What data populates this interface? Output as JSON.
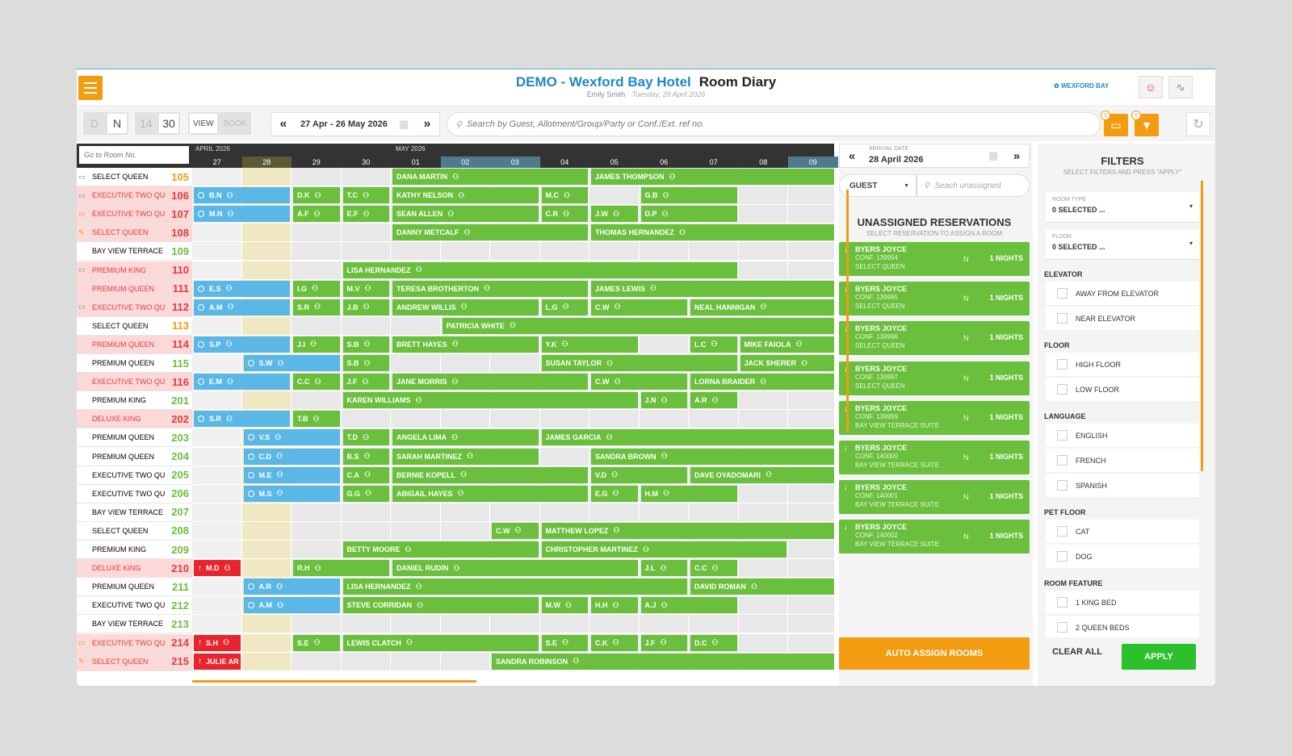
{
  "header": {
    "hotel": "DEMO - Wexford Bay Hotel",
    "page": "Room Diary",
    "user": "Emily Smith",
    "date": "Tuesday, 28 April 2026",
    "brand": "WEXFORD BAY"
  },
  "toolbar": {
    "d": "D",
    "n": "N",
    "v14": "14",
    "v30": "30",
    "view": "VIEW",
    "book": "BOOK",
    "range": "27 Apr - 26 May 2026",
    "search_placeholder": "Search by Guest, Allotment/Group/Party or Conf./Ext. ref no.",
    "badge1": "0",
    "badge2": "0"
  },
  "diary": {
    "goto_placeholder": "Go to Room No.",
    "month1": "APRIL 2026",
    "month2": "MAY 2026",
    "days": [
      "27",
      "28",
      "29",
      "30",
      "01",
      "02",
      "03",
      "04",
      "05",
      "06",
      "07",
      "08",
      "09"
    ],
    "rooms": [
      {
        "type": "SELECT QUEEN",
        "num": "105",
        "tc": "#000",
        "nc": "#f39c12",
        "bg": "#fff",
        "icon": "bed"
      },
      {
        "type": "EXECUTIVE TWO QUEE",
        "num": "106",
        "tc": "#e23b3b",
        "nc": "#e23b3b",
        "bg": "#fcd9d9",
        "icon": "bed"
      },
      {
        "type": "EXECUTIVE TWO QUEE",
        "num": "107",
        "tc": "#e23b3b",
        "nc": "#e23b3b",
        "bg": "#fcd9d9",
        "icon": "bed-o"
      },
      {
        "type": "SELECT QUEEN",
        "num": "108",
        "tc": "#e23b3b",
        "nc": "#e23b3b",
        "bg": "#fcd9d9",
        "icon": "brush"
      },
      {
        "type": "BAY VIEW TERRACE SUITE",
        "num": "109",
        "tc": "#000",
        "nc": "#6abf3c",
        "bg": "#fff",
        "icon": ""
      },
      {
        "type": "PREMIUM KING",
        "num": "110",
        "tc": "#e23b3b",
        "nc": "#e23b3b",
        "bg": "#fcd9d9",
        "icon": "bed"
      },
      {
        "type": "PREMIUM QUEEN",
        "num": "111",
        "tc": "#e23b3b",
        "nc": "#e23b3b",
        "bg": "#fcd9d9",
        "icon": ""
      },
      {
        "type": "EXECUTIVE TWO QUEE",
        "num": "112",
        "tc": "#e23b3b",
        "nc": "#e23b3b",
        "bg": "#fcd9d9",
        "icon": "bed"
      },
      {
        "type": "SELECT QUEEN",
        "num": "113",
        "tc": "#000",
        "nc": "#f39c12",
        "bg": "#fff",
        "icon": ""
      },
      {
        "type": "PREMIUM QUEEN",
        "num": "114",
        "tc": "#e23b3b",
        "nc": "#e23b3b",
        "bg": "#fcd9d9",
        "icon": ""
      },
      {
        "type": "PREMIUM QUEEN",
        "num": "115",
        "tc": "#000",
        "nc": "#6abf3c",
        "bg": "#fff",
        "icon": ""
      },
      {
        "type": "EXECUTIVE TWO QUEEN",
        "num": "116",
        "tc": "#e23b3b",
        "nc": "#e23b3b",
        "bg": "#fcd9d9",
        "icon": ""
      },
      {
        "type": "PREMIUM KING",
        "num": "201",
        "tc": "#000",
        "nc": "#6abf3c",
        "bg": "#fff",
        "icon": ""
      },
      {
        "type": "DELUXE KING",
        "num": "202",
        "tc": "#e23b3b",
        "nc": "#e23b3b",
        "bg": "#fcd9d9",
        "icon": ""
      },
      {
        "type": "PREMIUM QUEEN",
        "num": "203",
        "tc": "#000",
        "nc": "#6abf3c",
        "bg": "#fff",
        "icon": ""
      },
      {
        "type": "PREMIUM QUEEN",
        "num": "204",
        "tc": "#000",
        "nc": "#6abf3c",
        "bg": "#fff",
        "icon": ""
      },
      {
        "type": "EXECUTIVE TWO QUEEN",
        "num": "205",
        "tc": "#000",
        "nc": "#6abf3c",
        "bg": "#fff",
        "icon": ""
      },
      {
        "type": "EXECUTIVE TWO QUEEN",
        "num": "206",
        "tc": "#000",
        "nc": "#6abf3c",
        "bg": "#fff",
        "icon": ""
      },
      {
        "type": "BAY VIEW TERRACE SUITE",
        "num": "207",
        "tc": "#000",
        "nc": "#6abf3c",
        "bg": "#fff",
        "icon": ""
      },
      {
        "type": "SELECT QUEEN",
        "num": "208",
        "tc": "#000",
        "nc": "#6abf3c",
        "bg": "#fff",
        "icon": ""
      },
      {
        "type": "PREMIUM KING",
        "num": "209",
        "tc": "#000",
        "nc": "#6abf3c",
        "bg": "#fff",
        "icon": ""
      },
      {
        "type": "DELUXE KING",
        "num": "210",
        "tc": "#e23b3b",
        "nc": "#e23b3b",
        "bg": "#fcd9d9",
        "icon": ""
      },
      {
        "type": "PREMIUM QUEEN",
        "num": "211",
        "tc": "#000",
        "nc": "#6abf3c",
        "bg": "#fff",
        "icon": ""
      },
      {
        "type": "EXECUTIVE TWO QUEEN",
        "num": "212",
        "tc": "#000",
        "nc": "#6abf3c",
        "bg": "#fff",
        "icon": ""
      },
      {
        "type": "BAY VIEW TERRACE SUITE",
        "num": "213",
        "tc": "#000",
        "nc": "#6abf3c",
        "bg": "#fff",
        "icon": ""
      },
      {
        "type": "EXECUTIVE TWO QUEE",
        "num": "214",
        "tc": "#e23b3b",
        "nc": "#e23b3b",
        "bg": "#fcd9d9",
        "icon": "bed-o"
      },
      {
        "type": "SELECT QUEEN",
        "num": "215",
        "tc": "#e23b3b",
        "nc": "#e23b3b",
        "bg": "#fcd9d9",
        "icon": "brush"
      }
    ],
    "bookings": [
      {
        "r": 0,
        "s": 4,
        "e": 8,
        "label": "DANA MARTIN",
        "c": "g"
      },
      {
        "r": 0,
        "s": 8,
        "e": 13,
        "label": "JAMES THOMPSON",
        "c": "g"
      },
      {
        "r": 1,
        "s": 0,
        "e": 2,
        "label": "B.N",
        "c": "b"
      },
      {
        "r": 1,
        "s": 2,
        "e": 3,
        "label": "D.K",
        "c": "g"
      },
      {
        "r": 1,
        "s": 3,
        "e": 4,
        "label": "T.C",
        "c": "g"
      },
      {
        "r": 1,
        "s": 4,
        "e": 7,
        "label": "KATHY NELSON",
        "c": "g"
      },
      {
        "r": 1,
        "s": 7,
        "e": 8,
        "label": "M.C",
        "c": "g"
      },
      {
        "r": 1,
        "s": 9,
        "e": 11,
        "label": "G.B",
        "c": "g"
      },
      {
        "r": 2,
        "s": 0,
        "e": 2,
        "label": "M.N",
        "c": "b"
      },
      {
        "r": 2,
        "s": 2,
        "e": 3,
        "label": "A.F",
        "c": "g"
      },
      {
        "r": 2,
        "s": 3,
        "e": 4,
        "label": "E.F",
        "c": "g"
      },
      {
        "r": 2,
        "s": 4,
        "e": 7,
        "label": "SEAN ALLEN",
        "c": "g"
      },
      {
        "r": 2,
        "s": 7,
        "e": 8,
        "label": "C.R",
        "c": "g"
      },
      {
        "r": 2,
        "s": 8,
        "e": 9,
        "label": "J.W",
        "c": "g"
      },
      {
        "r": 2,
        "s": 9,
        "e": 11,
        "label": "D.P",
        "c": "g"
      },
      {
        "r": 3,
        "s": 4,
        "e": 8,
        "label": "DANNY METCALF",
        "c": "g"
      },
      {
        "r": 3,
        "s": 8,
        "e": 13,
        "label": "THOMAS HERNANDEZ",
        "c": "g"
      },
      {
        "r": 5,
        "s": 3,
        "e": 11,
        "label": "LISA HERNANDEZ",
        "c": "g"
      },
      {
        "r": 6,
        "s": 0,
        "e": 2,
        "label": "E.S",
        "c": "b"
      },
      {
        "r": 6,
        "s": 2,
        "e": 3,
        "label": "I.G",
        "c": "g"
      },
      {
        "r": 6,
        "s": 3,
        "e": 4,
        "label": "M.V",
        "c": "g"
      },
      {
        "r": 6,
        "s": 4,
        "e": 8,
        "label": "TERESA BROTHERTON",
        "c": "g"
      },
      {
        "r": 6,
        "s": 8,
        "e": 13,
        "label": "JAMES LEWIS",
        "c": "g"
      },
      {
        "r": 7,
        "s": 0,
        "e": 2,
        "label": "A.M",
        "c": "b"
      },
      {
        "r": 7,
        "s": 2,
        "e": 3,
        "label": "S.R",
        "c": "g"
      },
      {
        "r": 7,
        "s": 3,
        "e": 4,
        "label": "J.B",
        "c": "g"
      },
      {
        "r": 7,
        "s": 4,
        "e": 7,
        "label": "ANDREW WILLIS",
        "c": "g"
      },
      {
        "r": 7,
        "s": 7,
        "e": 8,
        "label": "L.G",
        "c": "g"
      },
      {
        "r": 7,
        "s": 8,
        "e": 10,
        "label": "C.W",
        "c": "g"
      },
      {
        "r": 7,
        "s": 10,
        "e": 13,
        "label": "NEAL HANNIGAN",
        "c": "g"
      },
      {
        "r": 8,
        "s": 5,
        "e": 13,
        "label": "PATRICIA WHITE",
        "c": "g"
      },
      {
        "r": 9,
        "s": 0,
        "e": 2,
        "label": "S.P",
        "c": "b"
      },
      {
        "r": 9,
        "s": 2,
        "e": 3,
        "label": "J.I",
        "c": "g"
      },
      {
        "r": 9,
        "s": 3,
        "e": 4,
        "label": "S.B",
        "c": "g"
      },
      {
        "r": 9,
        "s": 4,
        "e": 7,
        "label": "BRETT HAYES",
        "c": "g"
      },
      {
        "r": 9,
        "s": 7,
        "e": 9,
        "label": "Y.K",
        "c": "g"
      },
      {
        "r": 9,
        "s": 10,
        "e": 11,
        "label": "L.C",
        "c": "g"
      },
      {
        "r": 9,
        "s": 11,
        "e": 13,
        "label": "MIKE FAIOLA",
        "c": "g"
      },
      {
        "r": 10,
        "s": 1,
        "e": 3,
        "label": "S.W",
        "c": "b"
      },
      {
        "r": 10,
        "s": 3,
        "e": 4,
        "label": "S.B",
        "c": "g"
      },
      {
        "r": 10,
        "s": 7,
        "e": 11,
        "label": "SUSAN TAYLOR",
        "c": "g"
      },
      {
        "r": 10,
        "s": 11,
        "e": 13,
        "label": "JACK SHERER",
        "c": "g"
      },
      {
        "r": 11,
        "s": 0,
        "e": 2,
        "label": "E.M",
        "c": "b"
      },
      {
        "r": 11,
        "s": 2,
        "e": 3,
        "label": "C.C",
        "c": "g"
      },
      {
        "r": 11,
        "s": 3,
        "e": 4,
        "label": "J.F",
        "c": "g"
      },
      {
        "r": 11,
        "s": 4,
        "e": 8,
        "label": "JANE MORRIS",
        "c": "g"
      },
      {
        "r": 11,
        "s": 8,
        "e": 10,
        "label": "C.W",
        "c": "g"
      },
      {
        "r": 11,
        "s": 10,
        "e": 13,
        "label": "LORNA BRAIDER",
        "c": "g"
      },
      {
        "r": 12,
        "s": 3,
        "e": 9,
        "label": "KAREN WILLIAMS",
        "c": "g"
      },
      {
        "r": 12,
        "s": 9,
        "e": 10,
        "label": "J.N",
        "c": "g"
      },
      {
        "r": 12,
        "s": 10,
        "e": 11,
        "label": "A.R",
        "c": "g"
      },
      {
        "r": 13,
        "s": 0,
        "e": 2,
        "label": "S.R",
        "c": "b"
      },
      {
        "r": 13,
        "s": 2,
        "e": 3,
        "label": "T.B",
        "c": "g"
      },
      {
        "r": 14,
        "s": 1,
        "e": 3,
        "label": "V.S",
        "c": "b"
      },
      {
        "r": 14,
        "s": 3,
        "e": 4,
        "label": "T.D",
        "c": "g"
      },
      {
        "r": 14,
        "s": 4,
        "e": 7,
        "label": "ANGELA LIMA",
        "c": "g"
      },
      {
        "r": 14,
        "s": 7,
        "e": 13,
        "label": "JAMES GARCIA",
        "c": "g"
      },
      {
        "r": 15,
        "s": 1,
        "e": 3,
        "label": "C.D",
        "c": "b"
      },
      {
        "r": 15,
        "s": 3,
        "e": 4,
        "label": "B.S",
        "c": "g"
      },
      {
        "r": 15,
        "s": 4,
        "e": 7,
        "label": "SARAH MARTINEZ",
        "c": "g"
      },
      {
        "r": 15,
        "s": 8,
        "e": 13,
        "label": "SANDRA BROWN",
        "c": "g"
      },
      {
        "r": 16,
        "s": 1,
        "e": 3,
        "label": "M.E",
        "c": "b"
      },
      {
        "r": 16,
        "s": 3,
        "e": 4,
        "label": "C.A",
        "c": "g"
      },
      {
        "r": 16,
        "s": 4,
        "e": 8,
        "label": "BERNIE KOPELL",
        "c": "g"
      },
      {
        "r": 16,
        "s": 8,
        "e": 10,
        "label": "V.D",
        "c": "g"
      },
      {
        "r": 16,
        "s": 10,
        "e": 13,
        "label": "DAVE OYADOMARI",
        "c": "g"
      },
      {
        "r": 17,
        "s": 1,
        "e": 3,
        "label": "M.S",
        "c": "b"
      },
      {
        "r": 17,
        "s": 3,
        "e": 4,
        "label": "G.G",
        "c": "g"
      },
      {
        "r": 17,
        "s": 4,
        "e": 8,
        "label": "ABIGAIL HAYES",
        "c": "g"
      },
      {
        "r": 17,
        "s": 8,
        "e": 9,
        "label": "E.G",
        "c": "g"
      },
      {
        "r": 17,
        "s": 9,
        "e": 11,
        "label": "H.M",
        "c": "g"
      },
      {
        "r": 19,
        "s": 6,
        "e": 7,
        "label": "C.W",
        "c": "g"
      },
      {
        "r": 19,
        "s": 7,
        "e": 13,
        "label": "MATTHEW LOPEZ",
        "c": "g"
      },
      {
        "r": 20,
        "s": 3,
        "e": 7,
        "label": "BETTY MOORE",
        "c": "g"
      },
      {
        "r": 20,
        "s": 7,
        "e": 12,
        "label": "CHRISTOPHER MARTINEZ",
        "c": "g"
      },
      {
        "r": 21,
        "s": 0,
        "e": 1,
        "label": "M.D",
        "c": "r"
      },
      {
        "r": 21,
        "s": 2,
        "e": 4,
        "label": "R.H",
        "c": "g"
      },
      {
        "r": 21,
        "s": 4,
        "e": 9,
        "label": "DANIEL RUDIN",
        "c": "g"
      },
      {
        "r": 21,
        "s": 9,
        "e": 10,
        "label": "J.L",
        "c": "g"
      },
      {
        "r": 21,
        "s": 10,
        "e": 11,
        "label": "C.C",
        "c": "g"
      },
      {
        "r": 22,
        "s": 1,
        "e": 3,
        "label": "A.R",
        "c": "b"
      },
      {
        "r": 22,
        "s": 3,
        "e": 10,
        "label": "LISA HERNANDEZ",
        "c": "g"
      },
      {
        "r": 22,
        "s": 10,
        "e": 13,
        "label": "DAVID ROMAN",
        "c": "g"
      },
      {
        "r": 23,
        "s": 1,
        "e": 3,
        "label": "A.M",
        "c": "b"
      },
      {
        "r": 23,
        "s": 3,
        "e": 7,
        "label": "STEVE CORRIDAN",
        "c": "g"
      },
      {
        "r": 23,
        "s": 7,
        "e": 8,
        "label": "M.W",
        "c": "g"
      },
      {
        "r": 23,
        "s": 8,
        "e": 9,
        "label": "H.H",
        "c": "g"
      },
      {
        "r": 23,
        "s": 9,
        "e": 11,
        "label": "A.J",
        "c": "g"
      },
      {
        "r": 25,
        "s": 0,
        "e": 1,
        "label": "S.H",
        "c": "r"
      },
      {
        "r": 25,
        "s": 2,
        "e": 3,
        "label": "S.E",
        "c": "g"
      },
      {
        "r": 25,
        "s": 3,
        "e": 7,
        "label": "LEWIS CLATCH",
        "c": "g"
      },
      {
        "r": 25,
        "s": 7,
        "e": 8,
        "label": "S.E",
        "c": "g"
      },
      {
        "r": 25,
        "s": 8,
        "e": 9,
        "label": "C.K",
        "c": "g"
      },
      {
        "r": 25,
        "s": 9,
        "e": 10,
        "label": "J.F",
        "c": "g"
      },
      {
        "r": 25,
        "s": 10,
        "e": 11,
        "label": "D.C",
        "c": "g"
      },
      {
        "r": 26,
        "s": 0,
        "e": 1,
        "label": "JULIE AR",
        "c": "r"
      },
      {
        "r": 26,
        "s": 6,
        "e": 13,
        "label": "SANDRA ROBINSON",
        "c": "g"
      }
    ]
  },
  "unassigned": {
    "arrival_label": "ARRIVAL DATE",
    "arrival_date": "28 April 2026",
    "guest": "GUEST",
    "search_placeholder": "Seach unassigned",
    "title": "UNASSIGNED RESERVATIONS",
    "subtitle": "SELECT RESERVATION TO ASSIGN A ROOM",
    "items": [
      {
        "name": "BYERS JOYCE",
        "conf": "CONF. 139994",
        "room": "SELECT QUEEN",
        "n": "N",
        "nights": "1 NIGHTS"
      },
      {
        "name": "BYERS JOYCE",
        "conf": "CONF. 139995",
        "room": "SELECT QUEEN",
        "n": "N",
        "nights": "1 NIGHTS"
      },
      {
        "name": "BYERS JOYCE",
        "conf": "CONF. 139996",
        "room": "SELECT QUEEN",
        "n": "N",
        "nights": "1 NIGHTS"
      },
      {
        "name": "BYERS JOYCE",
        "conf": "CONF. 139997",
        "room": "SELECT QUEEN",
        "n": "N",
        "nights": "1 NIGHTS"
      },
      {
        "name": "BYERS JOYCE",
        "conf": "CONF. 139999",
        "room": "BAY VIEW TERRACE SUITE",
        "n": "N",
        "nights": "1 NIGHTS"
      },
      {
        "name": "BYERS JOYCE",
        "conf": "CONF. 140000",
        "room": "BAY VIEW TERRACE SUITE",
        "n": "N",
        "nights": "1 NIGHTS"
      },
      {
        "name": "BYERS JOYCE",
        "conf": "CONF. 140001",
        "room": "BAY VIEW TERRACE SUITE",
        "n": "N",
        "nights": "1 NIGHTS"
      },
      {
        "name": "BYERS JOYCE",
        "conf": "CONF. 140002",
        "room": "BAY VIEW TERRACE SUITE",
        "n": "N",
        "nights": "1 NIGHTS"
      }
    ],
    "auto_assign": "AUTO ASSIGN ROOMS"
  },
  "filters": {
    "title": "FILTERS",
    "subtitle": "SELECT FILTERS AND PRESS \"APPLY\"",
    "room_type_label": "ROOM TYPE",
    "room_type_value": "0 SELECTED ...",
    "floor_label": "FLOOR",
    "floor_value": "0 SELECTED ...",
    "elevator": "ELEVATOR",
    "away_elevator": "AWAY FROM ELEVATOR",
    "near_elevator": "NEAR ELEVATOR",
    "floor": "FLOOR",
    "high_floor": "HIGH FLOOR",
    "low_floor": "LOW FLOOR",
    "language": "LANGUAGE",
    "english": "ENGLISH",
    "french": "FRENCH",
    "spanish": "SPANISH",
    "pet_floor": "PET FLOOR",
    "cat": "CAT",
    "dog": "DOG",
    "room_feature": "ROOM FEATURE",
    "king_bed": "1 KING BED",
    "queen_beds": "2 QUEEN BEDS",
    "clear_all": "CLEAR ALL",
    "apply": "APPLY"
  }
}
